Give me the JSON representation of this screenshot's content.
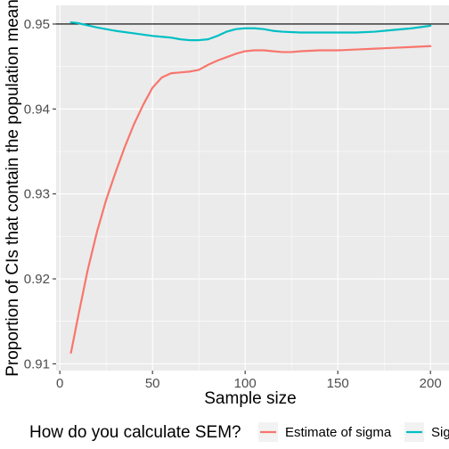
{
  "chart_data": {
    "type": "line",
    "xlabel": "Sample size",
    "ylabel": "Proportion of CIs that contain the population mean",
    "xlim": [
      -2,
      210
    ],
    "ylim": [
      0.9092,
      0.9522
    ],
    "x_ticks": [
      0,
      50,
      100,
      150,
      200
    ],
    "x_tick_labels": [
      "0",
      "50",
      "100",
      "150",
      "200"
    ],
    "y_ticks": [
      0.91,
      0.92,
      0.93,
      0.94,
      0.95
    ],
    "y_tick_labels": [
      "0.91",
      "0.92",
      "0.93",
      "0.94",
      "0.95"
    ],
    "reference_line": {
      "y": 0.95,
      "color": "#000000"
    },
    "grid": true,
    "background": "#EBEBEB",
    "legend": {
      "title": "How do you calculate SEM?",
      "position": "bottom",
      "entries": [
        "Estimate of sigma",
        "Sigma"
      ]
    },
    "series": [
      {
        "name": "Estimate of sigma",
        "color": "#F8766D",
        "x": [
          6,
          10,
          15,
          20,
          25,
          30,
          35,
          40,
          45,
          50,
          55,
          60,
          65,
          70,
          75,
          80,
          85,
          90,
          95,
          100,
          105,
          110,
          115,
          120,
          125,
          130,
          140,
          150,
          160,
          170,
          180,
          190,
          200
        ],
        "y": [
          0.9113,
          0.9157,
          0.921,
          0.9255,
          0.9293,
          0.9325,
          0.9355,
          0.9382,
          0.9405,
          0.9425,
          0.9437,
          0.9442,
          0.9443,
          0.9444,
          0.9446,
          0.9452,
          0.9457,
          0.9461,
          0.9465,
          0.9468,
          0.9469,
          0.9469,
          0.9468,
          0.9467,
          0.9467,
          0.9468,
          0.9469,
          0.9469,
          0.947,
          0.9471,
          0.9472,
          0.9473,
          0.9474
        ]
      },
      {
        "name": "Sigma",
        "color": "#00BFC4",
        "x": [
          6,
          10,
          20,
          30,
          40,
          50,
          55,
          60,
          65,
          70,
          75,
          80,
          85,
          90,
          95,
          100,
          105,
          110,
          115,
          120,
          130,
          140,
          150,
          160,
          170,
          180,
          190,
          200
        ],
        "y": [
          0.9502,
          0.9501,
          0.9496,
          0.9492,
          0.9489,
          0.9486,
          0.9485,
          0.9484,
          0.9482,
          0.9481,
          0.9481,
          0.9482,
          0.9486,
          0.9491,
          0.9494,
          0.9495,
          0.9495,
          0.9494,
          0.9492,
          0.9491,
          0.949,
          0.949,
          0.949,
          0.949,
          0.9491,
          0.9493,
          0.9495,
          0.9498
        ]
      }
    ]
  }
}
